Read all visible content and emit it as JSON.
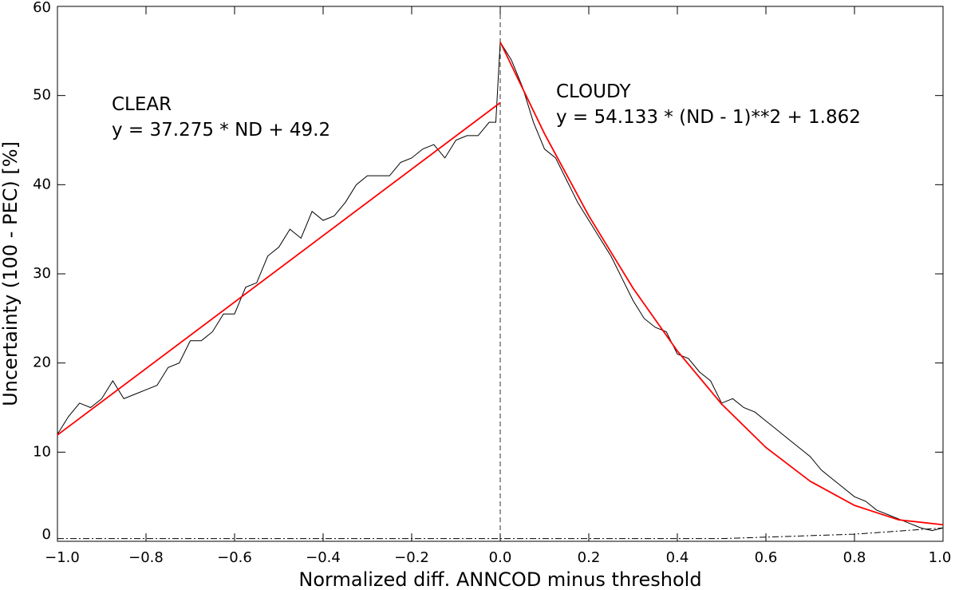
{
  "chart_data": {
    "type": "line",
    "x_label": "Normalized  diff. ANNCOD minus  threshold",
    "y_label": "Uncertainty (100 - PEC) [%]",
    "xlim": [
      -1,
      1
    ],
    "ylim": [
      0,
      60
    ],
    "xticks": [
      {
        "value": -1,
        "label": "−1.0"
      },
      {
        "value": -0.8,
        "label": "−0.8"
      },
      {
        "value": -0.6,
        "label": "−0.6"
      },
      {
        "value": -0.4,
        "label": "−0.4"
      },
      {
        "value": -0.2,
        "label": "−0.2"
      },
      {
        "value": 0,
        "label": "0.0"
      },
      0.2,
      0.4,
      0.6,
      0.8,
      {
        "value": 1,
        "label": "1.0"
      }
    ],
    "yticks": [
      0,
      10,
      20,
      30,
      40,
      50,
      60
    ],
    "vline": 0,
    "annotations": [
      "CLEAR",
      "y = 37.275 * ND + 49.2",
      "CLOUDY",
      "y = 54.133 * (ND - 1)**2 + 1.862"
    ],
    "series": [
      {
        "color": "#000000",
        "style": "solid",
        "x": [
          -1.0,
          -0.975,
          -0.95,
          -0.925,
          -0.9,
          -0.875,
          -0.85,
          -0.825,
          -0.8,
          -0.775,
          -0.75,
          -0.725,
          -0.7,
          -0.675,
          -0.65,
          -0.625,
          -0.6,
          -0.575,
          -0.55,
          -0.525,
          -0.5,
          -0.475,
          -0.45,
          -0.425,
          -0.4,
          -0.375,
          -0.35,
          -0.325,
          -0.3,
          -0.275,
          -0.25,
          -0.225,
          -0.2,
          -0.175,
          -0.15,
          -0.125,
          -0.1,
          -0.075,
          -0.05,
          -0.025,
          -0.01,
          0.0,
          0.025,
          0.05,
          0.075,
          0.1,
          0.125,
          0.15,
          0.175,
          0.2,
          0.225,
          0.25,
          0.275,
          0.3,
          0.325,
          0.35,
          0.375,
          0.4,
          0.425,
          0.45,
          0.475,
          0.5,
          0.525,
          0.55,
          0.575,
          0.6,
          0.625,
          0.65,
          0.675,
          0.7,
          0.725,
          0.75,
          0.775,
          0.8,
          0.825,
          0.85,
          0.875,
          0.9,
          0.925,
          0.95,
          0.975,
          1.0
        ],
        "values": [
          12,
          14,
          15.5,
          15,
          16,
          18,
          16,
          16.5,
          17,
          17.5,
          19.5,
          20,
          22.5,
          22.5,
          23.5,
          25.5,
          25.5,
          28.5,
          29,
          32,
          33,
          35,
          34,
          37,
          36,
          36.5,
          38,
          40,
          41,
          41,
          41,
          42.5,
          43,
          44,
          44.5,
          43,
          45,
          45.5,
          45.5,
          47,
          47,
          56,
          54,
          51,
          47,
          44,
          43,
          40.5,
          38,
          36,
          34,
          32,
          29.5,
          27,
          25,
          24,
          23.5,
          21,
          20.5,
          19,
          18,
          15.5,
          16,
          15,
          14.5,
          13.5,
          12.5,
          11.5,
          10.5,
          9.5,
          8,
          7,
          6,
          5,
          4.5,
          3.5,
          3,
          2.5,
          2,
          1.5,
          1.2,
          1.5
        ]
      },
      {
        "color": "#ff0000",
        "style": "solid",
        "x": [
          -1,
          0
        ],
        "values": [
          11.925,
          49.2
        ]
      },
      {
        "color": "#ff0000",
        "style": "solid",
        "x": [
          0,
          0.1,
          0.2,
          0.3,
          0.4,
          0.5,
          0.6,
          0.7,
          0.8,
          0.9,
          1.0
        ],
        "values": [
          55.995,
          45.71,
          36.507,
          28.387,
          21.35,
          15.395,
          10.523,
          6.734,
          4.027,
          2.403,
          1.862
        ]
      },
      {
        "color": "#000000",
        "style": "dashdot",
        "x": [
          -1,
          0,
          0.5,
          0.8,
          1
        ],
        "values": [
          0.3,
          0.3,
          0.3,
          0.8,
          1.5
        ]
      }
    ]
  }
}
